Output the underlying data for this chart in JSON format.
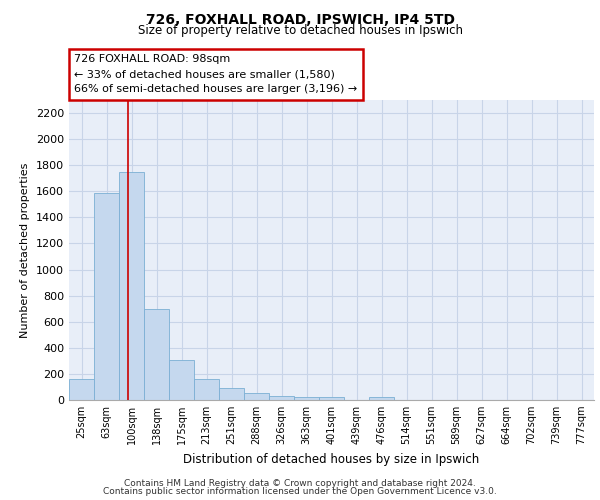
{
  "title1": "726, FOXHALL ROAD, IPSWICH, IP4 5TD",
  "title2": "Size of property relative to detached houses in Ipswich",
  "xlabel": "Distribution of detached houses by size in Ipswich",
  "ylabel": "Number of detached properties",
  "footer1": "Contains HM Land Registry data © Crown copyright and database right 2024.",
  "footer2": "Contains public sector information licensed under the Open Government Licence v3.0.",
  "annotation_line1": "726 FOXHALL ROAD: 98sqm",
  "annotation_line2": "← 33% of detached houses are smaller (1,580)",
  "annotation_line3": "66% of semi-detached houses are larger (3,196) →",
  "bar_labels": [
    "25sqm",
    "63sqm",
    "100sqm",
    "138sqm",
    "175sqm",
    "213sqm",
    "251sqm",
    "288sqm",
    "326sqm",
    "363sqm",
    "401sqm",
    "439sqm",
    "476sqm",
    "514sqm",
    "551sqm",
    "589sqm",
    "627sqm",
    "664sqm",
    "702sqm",
    "739sqm",
    "777sqm"
  ],
  "bar_values": [
    160,
    1590,
    1750,
    700,
    310,
    160,
    90,
    50,
    30,
    25,
    20,
    0,
    20,
    0,
    0,
    0,
    0,
    0,
    0,
    0,
    0
  ],
  "bar_color": "#C5D8EE",
  "bar_edge_color": "#7BAFD4",
  "red_line_x": 1.85,
  "red_line_color": "#CC0000",
  "grid_color": "#C8D4E8",
  "background_color": "#E8EEF8",
  "yticks": [
    0,
    200,
    400,
    600,
    800,
    1000,
    1200,
    1400,
    1600,
    1800,
    2000,
    2200
  ],
  "ylim": [
    0,
    2300
  ],
  "figsize": [
    6.0,
    5.0
  ],
  "dpi": 100
}
